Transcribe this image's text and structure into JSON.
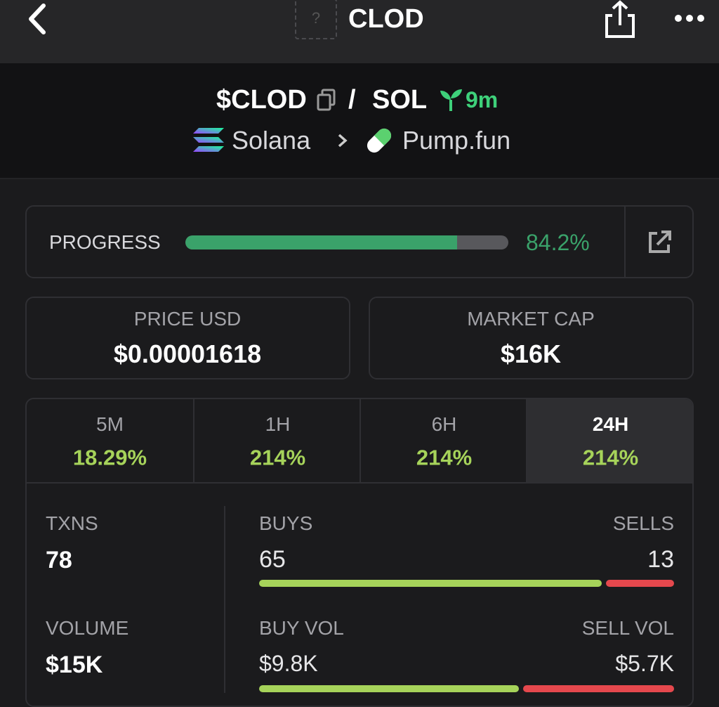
{
  "nav": {
    "title": "CLOD",
    "placeholder": "?"
  },
  "header": {
    "ticker": "$CLOD",
    "separator": "/",
    "quote": "SOL",
    "age": "9m",
    "chain": "Solana",
    "dex": "Pump.fun"
  },
  "progress": {
    "label": "PROGRESS",
    "value": 84.2,
    "value_label": "84.2%"
  },
  "price": {
    "label": "PRICE USD",
    "value": "$0.00001618"
  },
  "market_cap": {
    "label": "MARKET CAP",
    "value": "$16K"
  },
  "timeframes": [
    {
      "label": "5M",
      "change": "18.29%"
    },
    {
      "label": "1H",
      "change": "214%"
    },
    {
      "label": "6H",
      "change": "214%"
    },
    {
      "label": "24H",
      "change": "214%"
    }
  ],
  "active_timeframe": 3,
  "stats": {
    "txns": {
      "label": "TXNS",
      "value": 78
    },
    "buys": {
      "label": "BUYS",
      "value": 65
    },
    "sells": {
      "label": "SELLS",
      "value": 13
    },
    "volume": {
      "label": "VOLUME",
      "value": "$15K"
    },
    "buy_vol": {
      "label": "BUY VOL",
      "value": 9800,
      "value_label": "$9.8K"
    },
    "sell_vol": {
      "label": "SELL VOL",
      "value": 5700,
      "value_label": "$5.7K"
    }
  }
}
